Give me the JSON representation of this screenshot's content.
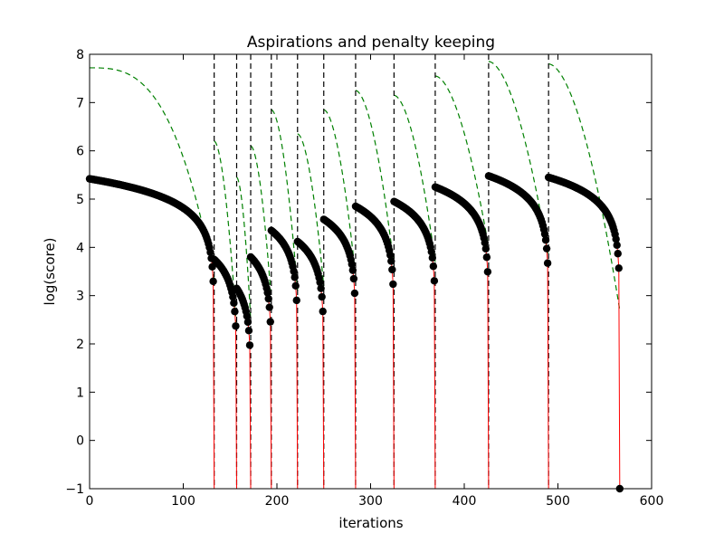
{
  "chart_data": {
    "type": "scatter",
    "title": "Aspirations and penalty keeping",
    "xlabel": "iterations",
    "ylabel": "log(score)",
    "xlim": [
      0,
      600
    ],
    "ylim": [
      -1,
      8
    ],
    "x_ticks": [
      0,
      100,
      200,
      300,
      400,
      500,
      600
    ],
    "y_ticks": [
      -1,
      0,
      1,
      2,
      3,
      4,
      5,
      6,
      7,
      8
    ],
    "grid": false,
    "legend": "none",
    "colors": {
      "markers": "#000000",
      "score_line": "#ff0000",
      "aspiration": "#008000",
      "restart": "#000000"
    },
    "restart_iterations": [
      133,
      157,
      172,
      194,
      222,
      250,
      284,
      325,
      369,
      426,
      490,
      566
    ],
    "score_segments": [
      {
        "start": 0,
        "end": 133,
        "start_value": 5.42,
        "mid_value": 4.15,
        "shape": 1.0
      },
      {
        "start": 133,
        "end": 157,
        "start_value": 3.75,
        "mid_value": 2.75,
        "shape": 1.0
      },
      {
        "start": 157,
        "end": 172,
        "start_value": 3.15,
        "mid_value": 2.55,
        "shape": 1.0
      },
      {
        "start": 172,
        "end": 194,
        "start_value": 3.8,
        "mid_value": 2.85,
        "shape": 1.0
      },
      {
        "start": 194,
        "end": 222,
        "start_value": 4.35,
        "mid_value": 3.3,
        "shape": 1.0
      },
      {
        "start": 222,
        "end": 250,
        "start_value": 4.12,
        "mid_value": 3.2,
        "shape": 1.0
      },
      {
        "start": 250,
        "end": 284,
        "start_value": 4.58,
        "mid_value": 3.55,
        "shape": 1.0
      },
      {
        "start": 284,
        "end": 325,
        "start_value": 4.85,
        "mid_value": 3.85,
        "shape": 1.0
      },
      {
        "start": 325,
        "end": 369,
        "start_value": 4.95,
        "mid_value": 3.95,
        "shape": 1.0
      },
      {
        "start": 369,
        "end": 426,
        "start_value": 5.25,
        "mid_value": 4.25,
        "shape": 1.0
      },
      {
        "start": 426,
        "end": 490,
        "start_value": 5.48,
        "mid_value": 4.45,
        "shape": 1.0
      },
      {
        "start": 490,
        "end": 566,
        "start_value": 5.45,
        "mid_value": 4.55,
        "shape": 1.0
      }
    ],
    "aspiration_segments": [
      {
        "start": 0,
        "end": 133,
        "start_value": 7.72,
        "end_value": 3.35,
        "shape": 3.0
      },
      {
        "start": 133,
        "end": 157,
        "start_value": 6.2,
        "end_value": 2.3,
        "shape": 1.8
      },
      {
        "start": 157,
        "end": 172,
        "start_value": 5.45,
        "end_value": 2.5,
        "shape": 1.8
      },
      {
        "start": 172,
        "end": 194,
        "start_value": 6.1,
        "end_value": 2.9,
        "shape": 1.8
      },
      {
        "start": 194,
        "end": 222,
        "start_value": 6.85,
        "end_value": 3.1,
        "shape": 1.8
      },
      {
        "start": 222,
        "end": 250,
        "start_value": 6.35,
        "end_value": 3.2,
        "shape": 1.8
      },
      {
        "start": 250,
        "end": 284,
        "start_value": 6.85,
        "end_value": 3.4,
        "shape": 1.8
      },
      {
        "start": 284,
        "end": 325,
        "start_value": 7.25,
        "end_value": 3.6,
        "shape": 1.8
      },
      {
        "start": 325,
        "end": 369,
        "start_value": 7.15,
        "end_value": 3.7,
        "shape": 1.8
      },
      {
        "start": 369,
        "end": 426,
        "start_value": 7.55,
        "end_value": 4.0,
        "shape": 1.8
      },
      {
        "start": 426,
        "end": 490,
        "start_value": 7.85,
        "end_value": 3.8,
        "shape": 1.8
      },
      {
        "start": 490,
        "end": 566,
        "start_value": 7.8,
        "end_value": 2.7,
        "shape": 1.8
      }
    ]
  }
}
